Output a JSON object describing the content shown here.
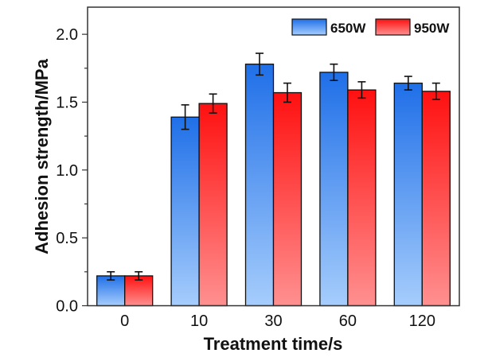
{
  "chart_data": {
    "type": "bar",
    "title": "",
    "xlabel": "Treatment time/s",
    "ylabel": "Adhesion strength/MPa",
    "categories": [
      "0",
      "10",
      "30",
      "60",
      "120"
    ],
    "ylim": [
      0,
      2.2
    ],
    "yticks": [
      "0.0",
      "0.5",
      "1.0",
      "1.5",
      "2.0"
    ],
    "grid": false,
    "legend_position": "top-right",
    "series": [
      {
        "name": "650W",
        "values": [
          0.22,
          1.39,
          1.78,
          1.72,
          1.64
        ],
        "errors": [
          0.03,
          0.09,
          0.08,
          0.06,
          0.05
        ],
        "color_top": "#1f6fe8",
        "color_bottom": "#a6cdfc"
      },
      {
        "name": "950W",
        "values": [
          0.22,
          1.49,
          1.57,
          1.59,
          1.58
        ],
        "errors": [
          0.03,
          0.07,
          0.07,
          0.06,
          0.06
        ],
        "color_top": "#ff1010",
        "color_bottom": "#ff9090"
      }
    ]
  }
}
